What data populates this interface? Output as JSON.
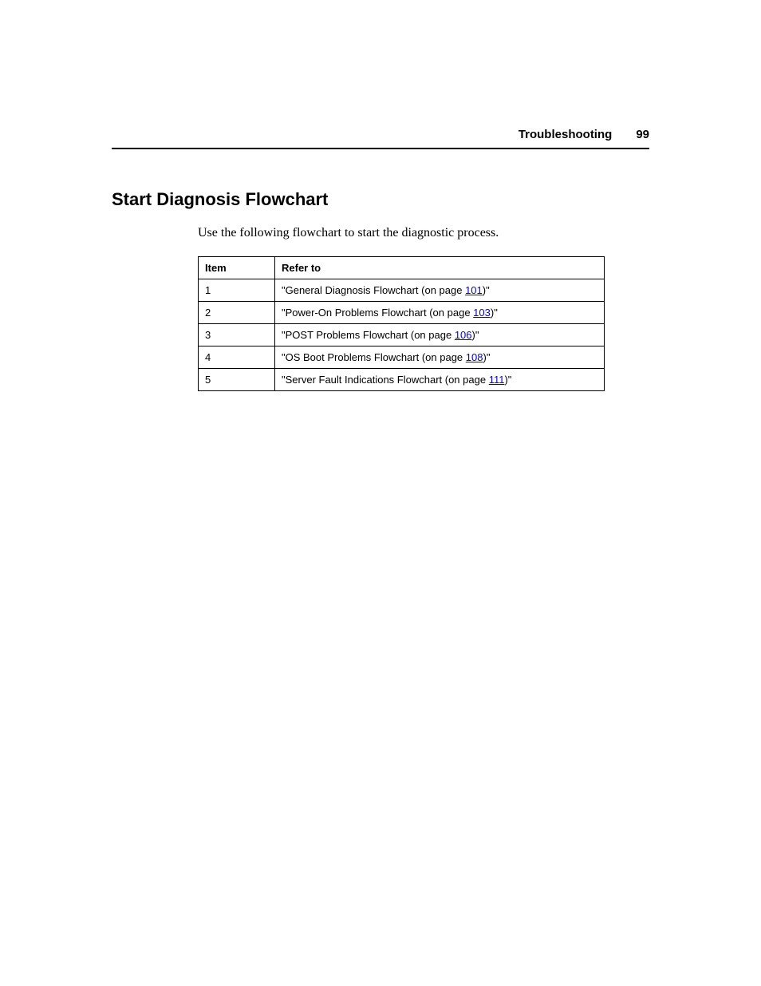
{
  "header": {
    "section": "Troubleshooting",
    "page_number": "99"
  },
  "title": "Start Diagnosis Flowchart",
  "intro": "Use the following flowchart to start the diagnostic process.",
  "table": {
    "columns": [
      "Item",
      "Refer to"
    ],
    "rows": [
      {
        "item": "1",
        "prefix": "\"General Diagnosis Flowchart (on page ",
        "link": "101",
        "suffix": ")\""
      },
      {
        "item": "2",
        "prefix": "\"Power-On Problems Flowchart (on page ",
        "link": "103",
        "suffix": ")\""
      },
      {
        "item": "3",
        "prefix": "\"POST Problems Flowchart (on page ",
        "link": "106",
        "suffix": ")\""
      },
      {
        "item": "4",
        "prefix": "\"OS Boot Problems Flowchart (on page ",
        "link": "108",
        "suffix": ")\""
      },
      {
        "item": "5",
        "prefix": "\"Server Fault Indications Flowchart (on page ",
        "link": "111",
        "suffix": ")\""
      }
    ]
  },
  "colors": {
    "link": "#0000ee",
    "text": "#000000",
    "border": "#000000",
    "background": "#ffffff"
  }
}
